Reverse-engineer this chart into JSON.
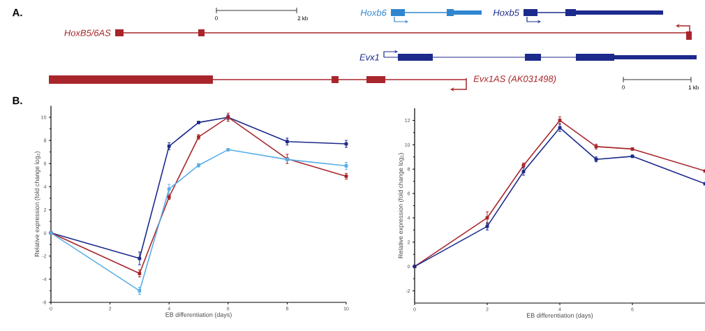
{
  "chart_data": [
    {
      "type": "other",
      "title": "A.",
      "annotations": [
        "HoxB5/6AS",
        "Hoxb6",
        "Hoxb5",
        "Evx1",
        "Evx1AS (AK031498)",
        "0",
        "2 kb",
        "0",
        "1 kb"
      ]
    },
    {
      "type": "line",
      "title": "B.",
      "xlabel": "EB differentiation (days)",
      "ylabel": "Relative expression (fold change log$_{2}$)",
      "x": [
        0,
        3,
        4,
        5,
        6,
        8,
        10
      ],
      "xlim": [
        0,
        10
      ],
      "xticks": [
        0,
        2,
        4,
        6,
        8,
        10
      ],
      "ylim": [
        -6,
        11
      ],
      "yticks": [
        -6,
        -4,
        -2,
        0,
        2,
        4,
        6,
        8,
        10
      ],
      "marker": "square",
      "grid": false,
      "series": [
        {
          "color": "#1c2a8c",
          "values": [
            0,
            -2.2,
            7.5,
            9.55,
            10.0,
            7.9,
            7.7
          ],
          "errors": [
            null,
            0.55,
            0.3,
            0.1,
            0.2,
            0.3,
            0.3
          ]
        },
        {
          "color": "#a8262b",
          "values": [
            0,
            -3.5,
            3.1,
            8.3,
            10.0,
            6.4,
            4.9
          ],
          "errors": [
            null,
            0.3,
            0.2,
            0.2,
            0.35,
            0.4,
            0.25
          ]
        },
        {
          "color": "#5aaee8",
          "values": [
            0,
            -5.0,
            3.8,
            5.85,
            7.2,
            6.35,
            5.8
          ],
          "errors": [
            null,
            0.3,
            0.4,
            0.15,
            0.1,
            0.1,
            0.3
          ]
        }
      ]
    },
    {
      "type": "line",
      "xlabel": "EB differentiation (days)",
      "ylabel": "Relative expression (fold change log$_{2}$)",
      "x": [
        0,
        2,
        3,
        4,
        5,
        6,
        8
      ],
      "xlim": [
        0,
        8
      ],
      "xticks": [
        0,
        2,
        4,
        6
      ],
      "ylim": [
        -3,
        13
      ],
      "yticks": [
        -2,
        0,
        2,
        4,
        6,
        8,
        10,
        12
      ],
      "marker": "square",
      "grid": false,
      "series": [
        {
          "color": "#a8262b",
          "values": [
            0,
            4.0,
            8.3,
            12.0,
            9.85,
            9.65,
            7.85
          ],
          "errors": [
            null,
            0.5,
            0.2,
            0.3,
            0.2,
            0.1,
            null
          ]
        },
        {
          "color": "#1c2a8c",
          "values": [
            0,
            3.3,
            7.8,
            11.4,
            8.8,
            9.05,
            6.8
          ],
          "errors": [
            null,
            0.3,
            0.3,
            0.3,
            0.2,
            0.1,
            null
          ]
        }
      ]
    }
  ]
}
